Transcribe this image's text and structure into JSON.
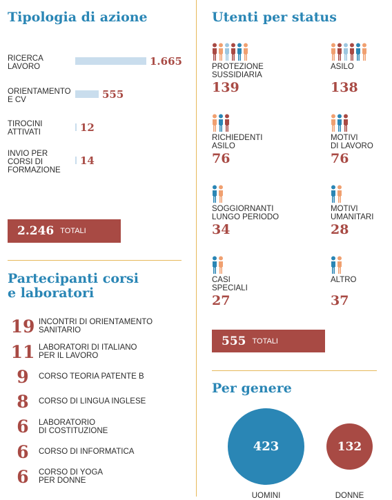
{
  "colors": {
    "accent": "#2a86b5",
    "red": "#a84a44",
    "bar": "#c9dded",
    "divider": "#e6b85a"
  },
  "azione": {
    "title": "Tipologia di azione",
    "rows": [
      {
        "label": "RICERCA\nLAVORO",
        "value_text": "1.665"
      },
      {
        "label": "ORIENTAMENTO\nE CV",
        "value_text": "555"
      },
      {
        "label": "TIROCINI\nATTIVATI",
        "value_text": "12"
      },
      {
        "label": "INVIO PER\nCORSI DI\nFORMAZIONE",
        "value_text": "14"
      }
    ],
    "total_value": "2.246",
    "total_label": "TOTALI"
  },
  "corsi": {
    "title_line1": "Partecipanti corsi",
    "title_line2": "e laboratori",
    "items": [
      {
        "num": "19",
        "label": "INCONTRI DI ORIENTAMENTO\nSANITARIO"
      },
      {
        "num": "11",
        "label": "LABORATORI DI ITALIANO\nPER IL LAVORO"
      },
      {
        "num": "9",
        "label": "CORSO TEORIA PATENTE B"
      },
      {
        "num": "8",
        "label": "CORSO DI LINGUA INGLESE"
      },
      {
        "num": "6",
        "label": "LABORATORIO\nDI COSTITUZIONE"
      },
      {
        "num": "6",
        "label": "CORSO DI INFORMATICA"
      },
      {
        "num": "6",
        "label": "CORSO DI YOGA\nPER DONNE"
      }
    ]
  },
  "status": {
    "title": "Utenti per status",
    "items": [
      {
        "label": "PROTEZIONE\nSUSSIDIARIA",
        "value": "139",
        "icons": [
          "#a84a44",
          "#f0a070",
          "#9ec7e0",
          "#a84a44",
          "#2a86b5",
          "#f0a070"
        ]
      },
      {
        "label": "ASILO",
        "value": "138",
        "icons": [
          "#f0a070",
          "#a84a44",
          "#9ec7e0",
          "#a84a44",
          "#2a86b5",
          "#f0a070"
        ]
      },
      {
        "label": "RICHIEDENTI\nASILO",
        "value": "76",
        "icons": [
          "#f0a070",
          "#2a86b5",
          "#a84a44"
        ]
      },
      {
        "label": "MOTIVI\nDI LAVORO",
        "value": "76",
        "icons": [
          "#f0a070",
          "#2a86b5",
          "#a84a44"
        ]
      },
      {
        "label": "SOGGIORNANTI\nLUNGO PERIODO",
        "value": "34",
        "icons": [
          "#2a86b5",
          "#f0a070"
        ]
      },
      {
        "label": "MOTIVI\nUMANITARI",
        "value": "28",
        "icons": [
          "#2a86b5",
          "#f0a070"
        ]
      },
      {
        "label": "CASI\nSPECIALI",
        "value": "27",
        "icons": [
          "#2a86b5",
          "#f0a070"
        ]
      },
      {
        "label": "ALTRO",
        "value": "37",
        "icons": [
          "#2a86b5",
          "#f0a070"
        ]
      }
    ],
    "total_value": "555",
    "total_label": "TOTALI"
  },
  "genere": {
    "title": "Per genere",
    "men_value": "423",
    "men_label": "UOMINI",
    "women_value": "132",
    "women_label": "DONNE"
  },
  "chart_data": [
    {
      "type": "bar",
      "title": "Tipologia di azione",
      "categories": [
        "RICERCA LAVORO",
        "ORIENTAMENTO E CV",
        "TIROCINI ATTIVATI",
        "INVIO PER CORSI DI FORMAZIONE"
      ],
      "values": [
        1665,
        555,
        12,
        14
      ],
      "total": 2246
    },
    {
      "type": "table",
      "title": "Partecipanti corsi e laboratori",
      "categories": [
        "INCONTRI DI ORIENTAMENTO SANITARIO",
        "LABORATORI DI ITALIANO PER IL LAVORO",
        "CORSO TEORIA PATENTE B",
        "CORSO DI LINGUA INGLESE",
        "LABORATORIO DI COSTITUZIONE",
        "CORSO DI INFORMATICA",
        "CORSO DI YOGA PER DONNE"
      ],
      "values": [
        19,
        11,
        9,
        8,
        6,
        6,
        6
      ]
    },
    {
      "type": "table",
      "title": "Utenti per status",
      "categories": [
        "PROTEZIONE SUSSIDIARIA",
        "ASILO",
        "RICHIEDENTI ASILO",
        "MOTIVI DI LAVORO",
        "SOGGIORNANTI LUNGO PERIODO",
        "MOTIVI UMANITARI",
        "CASI SPECIALI",
        "ALTRO"
      ],
      "values": [
        139,
        138,
        76,
        76,
        34,
        28,
        27,
        37
      ],
      "total": 555
    },
    {
      "type": "bubble",
      "title": "Per genere",
      "categories": [
        "UOMINI",
        "DONNE"
      ],
      "values": [
        423,
        132
      ]
    }
  ]
}
